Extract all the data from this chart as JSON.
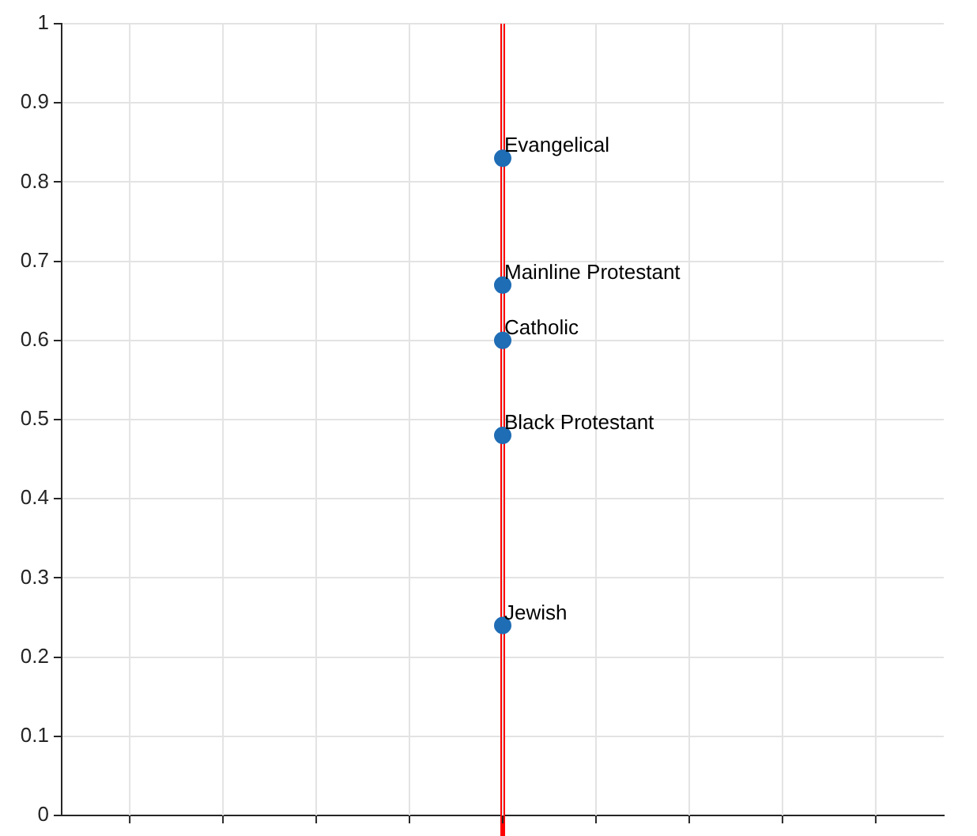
{
  "chart_data": {
    "type": "scatter",
    "categories": [
      null
    ],
    "series": [
      {
        "name": "Evangelical",
        "color": "#1f6db5",
        "values": [
          0.83
        ]
      },
      {
        "name": "Mainline Protestant",
        "color": "#1f6db5",
        "values": [
          0.67
        ]
      },
      {
        "name": "Catholic",
        "color": "#1f6db5",
        "values": [
          0.6
        ]
      },
      {
        "name": "Black Protestant",
        "color": "#1f6db5",
        "values": [
          0.48
        ]
      },
      {
        "name": "Jewish",
        "color": "#1f6db5",
        "values": [
          0.24
        ]
      }
    ],
    "ylim": [
      0,
      1
    ],
    "yticks": [
      0,
      0.1,
      0.2,
      0.3,
      0.4,
      0.5,
      0.6,
      0.7,
      0.8,
      0.9,
      1
    ],
    "grid": true,
    "legend": false,
    "marker": "circle",
    "ref_lines": [
      {
        "axis": "x",
        "color": "#ff0000"
      }
    ]
  }
}
